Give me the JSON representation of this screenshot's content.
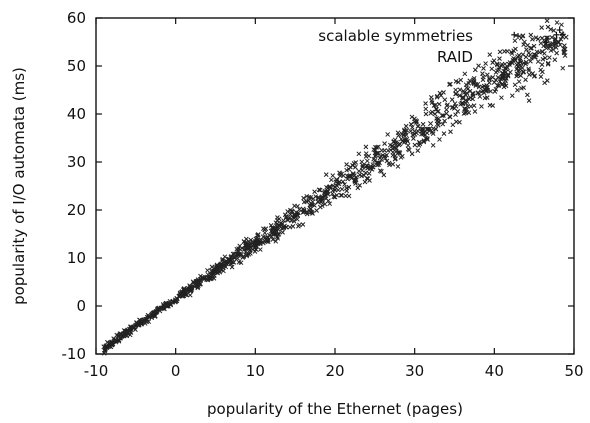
{
  "chart_data": {
    "type": "scatter",
    "xlabel": "popularity of the Ethernet  (pages)",
    "ylabel": "popularity of I/O automata  (ms)",
    "xlim": [
      -10,
      50
    ],
    "ylim": [
      -10,
      60
    ],
    "xticks": [
      "-10",
      "0",
      "10",
      "20",
      "30",
      "40",
      "50"
    ],
    "yticks": [
      "-10",
      "0",
      "10",
      "20",
      "30",
      "40",
      "50",
      "60"
    ],
    "grid": false,
    "legend_position": "top-right",
    "series": [
      {
        "name": "scalable symmetries",
        "marker": "plus",
        "points": [
          [
            42.5,
            56.5
          ],
          [
            46.5,
            55.0
          ],
          [
            47.8,
            56.5
          ],
          [
            48.2,
            57.5
          ],
          [
            48.6,
            56.6
          ]
        ]
      },
      {
        "name": "RAID",
        "marker": "x",
        "color": "#222222",
        "x_range": [
          -9,
          49
        ],
        "trend_slope": 1.15,
        "trend_intercept": 1.5,
        "points": [
          [
            -9,
            -8.5
          ],
          [
            -8,
            -7.5
          ],
          [
            -7,
            -6
          ],
          [
            -6,
            -5
          ],
          [
            -5,
            -4
          ],
          [
            -4,
            -3
          ],
          [
            -3,
            -2
          ],
          [
            -2,
            -1
          ],
          [
            -1,
            0
          ],
          [
            0,
            1
          ],
          [
            1,
            2.2
          ],
          [
            2,
            3.5
          ],
          [
            3,
            4.8
          ],
          [
            4,
            6
          ],
          [
            5,
            7.2
          ],
          [
            6,
            8.4
          ],
          [
            7,
            9.6
          ],
          [
            8,
            10.8
          ],
          [
            9,
            12
          ],
          [
            10,
            13.2
          ],
          [
            11,
            14.4
          ],
          [
            12,
            15.6
          ],
          [
            13,
            16.8
          ],
          [
            14,
            18
          ],
          [
            15,
            19
          ],
          [
            16,
            20.2
          ],
          [
            17,
            21.4
          ],
          [
            18,
            22.5
          ],
          [
            19,
            23.6
          ],
          [
            20,
            24.8
          ],
          [
            21,
            25.9
          ],
          [
            22,
            27
          ],
          [
            23,
            28.1
          ],
          [
            24,
            29.2
          ],
          [
            25,
            30.3
          ],
          [
            26,
            31.4
          ],
          [
            27,
            32.5
          ],
          [
            28,
            33.6
          ],
          [
            29,
            34.7
          ],
          [
            30,
            35.8
          ],
          [
            31,
            36.9
          ],
          [
            32,
            38
          ],
          [
            33,
            39
          ],
          [
            34,
            40.1
          ],
          [
            35,
            41.2
          ],
          [
            36,
            42.3
          ],
          [
            37,
            43.4
          ],
          [
            38,
            44.4
          ],
          [
            39,
            45.5
          ],
          [
            40,
            46.6
          ],
          [
            41,
            47.6
          ],
          [
            42,
            48.7
          ],
          [
            43,
            49.8
          ],
          [
            44,
            50.8
          ],
          [
            45,
            51.9
          ],
          [
            46,
            53
          ],
          [
            47,
            54
          ],
          [
            48,
            55.1
          ],
          [
            49,
            56
          ]
        ]
      }
    ]
  }
}
